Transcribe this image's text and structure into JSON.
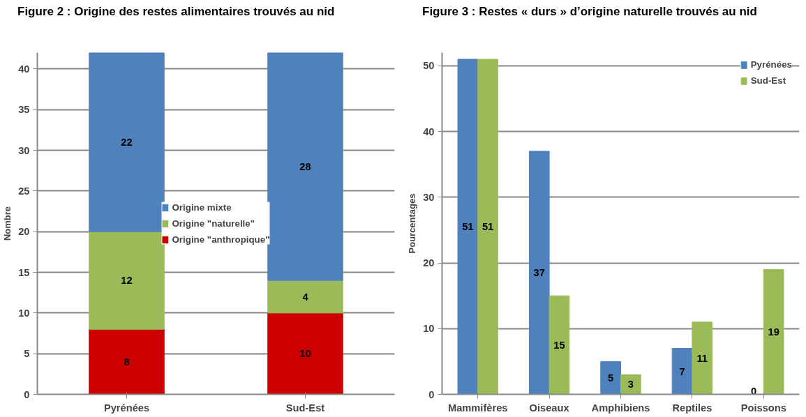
{
  "chart_data": [
    {
      "type": "bar",
      "title": "Figure 2 : Origine des restes alimentaires trouvés au nid",
      "ylabel": "Nombre",
      "categories": [
        "Pyrénées",
        "Sud-Est"
      ],
      "stacked": true,
      "series": [
        {
          "name": "Origine \"anthropique\"",
          "color": "#cc0000",
          "values": [
            8,
            10
          ]
        },
        {
          "name": "Origine \"naturelle\"",
          "color": "#9bbb59",
          "values": [
            12,
            4
          ]
        },
        {
          "name": "Origine mixte",
          "color": "#4f81bd",
          "values": [
            22,
            28
          ]
        }
      ],
      "ylim": [
        0,
        42
      ],
      "yticks": [
        0,
        5,
        10,
        15,
        20,
        25,
        30,
        35,
        40
      ],
      "grid": "y",
      "legend": "center",
      "data_labels": true
    },
    {
      "type": "bar",
      "title": "Figure 3 : Restes « durs » d’origine naturelle trouvés au nid",
      "ylabel": "Pourcentages",
      "categories": [
        "Mammifères",
        "Oiseaux",
        "Amphibiens",
        "Reptiles",
        "Poissons"
      ],
      "series": [
        {
          "name": "Pyrénées",
          "color": "#4f81bd",
          "values": [
            51,
            37,
            5,
            7,
            0
          ]
        },
        {
          "name": "Sud-Est",
          "color": "#9bbb59",
          "values": [
            51,
            15,
            3,
            11,
            19
          ]
        }
      ],
      "ylim": [
        0,
        52
      ],
      "yticks": [
        0,
        10,
        20,
        30,
        40,
        50
      ],
      "grid": "y",
      "legend": "top right",
      "data_labels": true
    }
  ]
}
